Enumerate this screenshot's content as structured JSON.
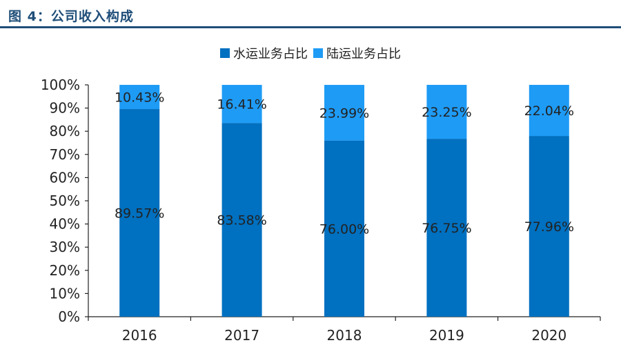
{
  "figure": {
    "title": "图 4：公司收入构成"
  },
  "colors": {
    "water": "#0070c0",
    "land": "#1e9bf5",
    "title": "#1f4e79",
    "axis": "#222222"
  },
  "chart_data": {
    "type": "bar",
    "stacked": true,
    "title": "",
    "xlabel": "",
    "ylabel": "",
    "categories": [
      "2016",
      "2017",
      "2018",
      "2019",
      "2020"
    ],
    "series": [
      {
        "name": "水运业务占比",
        "values": [
          89.57,
          83.58,
          76.0,
          76.75,
          77.96
        ],
        "labels": [
          "89.57%",
          "83.58%",
          "76.00%",
          "76.75%",
          "77.96%"
        ]
      },
      {
        "name": "陆运业务占比",
        "values": [
          10.43,
          16.41,
          23.99,
          23.25,
          22.04
        ],
        "labels": [
          "10.43%",
          "16.41%",
          "23.99%",
          "23.25%",
          "22.04%"
        ]
      }
    ],
    "ylim": [
      0,
      100
    ],
    "yticks": [
      "0%",
      "10%",
      "20%",
      "30%",
      "40%",
      "50%",
      "60%",
      "70%",
      "80%",
      "90%",
      "100%"
    ],
    "legend_position": "top-center",
    "grid": false
  }
}
